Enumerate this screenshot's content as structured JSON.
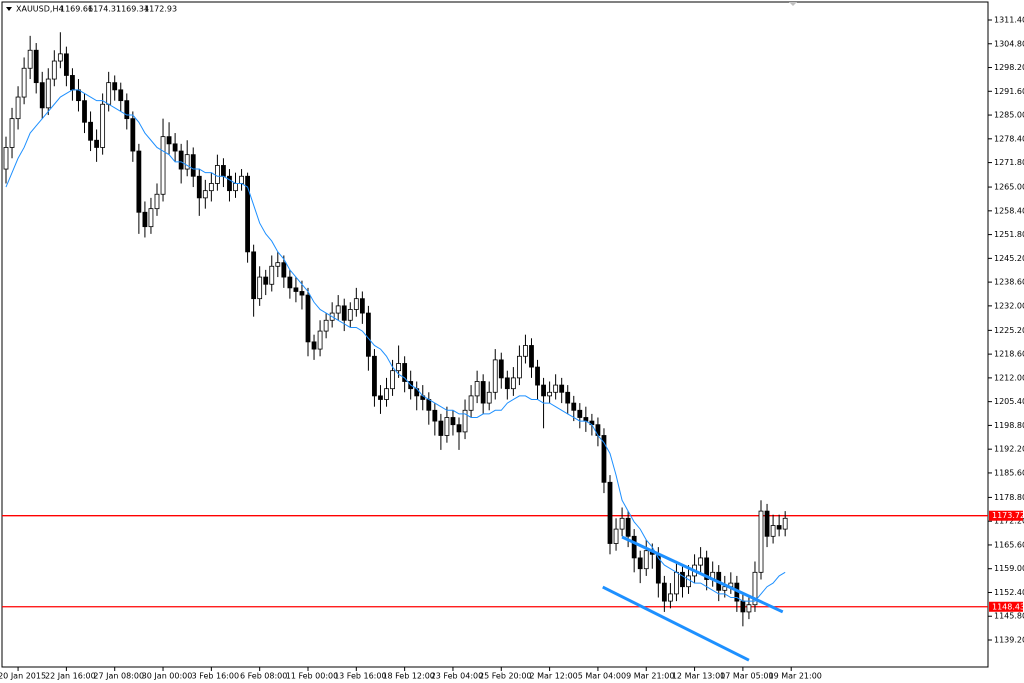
{
  "chart_data": {
    "type": "candlestick",
    "title": "XAUUSD,H4",
    "quote": [
      1169.66,
      1174.31,
      1169.34,
      1172.93
    ],
    "ylim": [
      1131.7,
      1316.4
    ],
    "xlim": [
      -0.66,
      162.58
    ],
    "yticks": [
      {
        "value": 1311.4,
        "label": "1311.40"
      },
      {
        "value": 1304.8,
        "label": "1304.80"
      },
      {
        "value": 1298.2,
        "label": "1298.20"
      },
      {
        "value": 1291.6,
        "label": "1291.60"
      },
      {
        "value": 1285,
        "label": "1285.00"
      },
      {
        "value": 1278.4,
        "label": "1278.40"
      },
      {
        "value": 1271.8,
        "label": "1271.80"
      },
      {
        "value": 1265,
        "label": "1265.00"
      },
      {
        "value": 1258.4,
        "label": "1258.40"
      },
      {
        "value": 1251.8,
        "label": "1251.80"
      },
      {
        "value": 1245.2,
        "label": "1245.20"
      },
      {
        "value": 1238.6,
        "label": "1238.60"
      },
      {
        "value": 1232,
        "label": "1232.00"
      },
      {
        "value": 1225.2,
        "label": "1225.20"
      },
      {
        "value": 1218.6,
        "label": "1218.60"
      },
      {
        "value": 1212,
        "label": "1212.00"
      },
      {
        "value": 1205.4,
        "label": "1205.40"
      },
      {
        "value": 1198.8,
        "label": "1198.80"
      },
      {
        "value": 1192.2,
        "label": "1192.20"
      },
      {
        "value": 1185.6,
        "label": "1185.60"
      },
      {
        "value": 1178.8,
        "label": "1178.80"
      },
      {
        "value": 1172.2,
        "label": "1172.20"
      },
      {
        "value": 1165.6,
        "label": "1165.60"
      },
      {
        "value": 1159,
        "label": "1159.00"
      },
      {
        "value": 1152.4,
        "label": "1152.40"
      },
      {
        "value": 1145.8,
        "label": "1145.80"
      },
      {
        "value": 1139.2,
        "label": "1139.20"
      }
    ],
    "xticks": [
      {
        "value": 2,
        "label": "20 Jan 2015"
      },
      {
        "value": 10,
        "label": "22 Jan 16:00"
      },
      {
        "value": 18,
        "label": "27 Jan 08:00"
      },
      {
        "value": 26,
        "label": "30 Jan 00:00"
      },
      {
        "value": 34,
        "label": "3 Feb 16:00"
      },
      {
        "value": 42,
        "label": "6 Feb 08:00"
      },
      {
        "value": 50,
        "label": "11 Feb 00:00"
      },
      {
        "value": 58,
        "label": "13 Feb 16:00"
      },
      {
        "value": 66,
        "label": "18 Feb 12:00"
      },
      {
        "value": 74,
        "label": "23 Feb 04:00"
      },
      {
        "value": 82,
        "label": "25 Feb 20:00"
      },
      {
        "value": 90,
        "label": "2 Mar 12:00"
      },
      {
        "value": 98,
        "label": "5 Mar 04:00"
      },
      {
        "value": 106,
        "label": "9 Mar 21:00"
      },
      {
        "value": 114,
        "label": "12 Mar 13:00"
      },
      {
        "value": 122,
        "label": "17 Mar 05:00"
      },
      {
        "value": 130,
        "label": "19 Mar 21:00"
      }
    ],
    "candles": [
      [
        1270,
        1279,
        1266,
        1276
      ],
      [
        1276,
        1287,
        1273,
        1284
      ],
      [
        1284,
        1293,
        1281,
        1290
      ],
      [
        1290,
        1301,
        1288,
        1298
      ],
      [
        1298,
        1307,
        1295,
        1303
      ],
      [
        1303,
        1305,
        1291,
        1294
      ],
      [
        1294,
        1297,
        1284,
        1287
      ],
      [
        1287,
        1298,
        1285,
        1295
      ],
      [
        1295,
        1303,
        1293,
        1300
      ],
      [
        1300,
        1308,
        1298,
        1302
      ],
      [
        1302,
        1304,
        1293,
        1296
      ],
      [
        1296,
        1298,
        1289,
        1292
      ],
      [
        1292,
        1295,
        1286,
        1289
      ],
      [
        1289,
        1291,
        1280,
        1283
      ],
      [
        1283,
        1286,
        1275,
        1278
      ],
      [
        1278,
        1281,
        1272,
        1276
      ],
      [
        1276,
        1291,
        1274,
        1288
      ],
      [
        1288,
        1297,
        1286,
        1294
      ],
      [
        1294,
        1296,
        1289,
        1292
      ],
      [
        1292,
        1294,
        1286,
        1289
      ],
      [
        1289,
        1291,
        1281,
        1284
      ],
      [
        1284,
        1286,
        1272,
        1275
      ],
      [
        1275,
        1277,
        1252,
        1258
      ],
      [
        1258,
        1261,
        1251,
        1254
      ],
      [
        1254,
        1262,
        1252,
        1259
      ],
      [
        1259,
        1266,
        1257,
        1263
      ],
      [
        1263,
        1284,
        1261,
        1279
      ],
      [
        1279,
        1283,
        1274,
        1277
      ],
      [
        1277,
        1280,
        1272,
        1275
      ],
      [
        1275,
        1277,
        1266,
        1270
      ],
      [
        1270,
        1278,
        1268,
        1274
      ],
      [
        1274,
        1276,
        1265,
        1268
      ],
      [
        1268,
        1270,
        1257,
        1262
      ],
      [
        1262,
        1267,
        1259,
        1264
      ],
      [
        1264,
        1269,
        1261,
        1266
      ],
      [
        1266,
        1274,
        1264,
        1271
      ],
      [
        1271,
        1273,
        1265,
        1268
      ],
      [
        1268,
        1270,
        1261,
        1264
      ],
      [
        1264,
        1269,
        1262,
        1266
      ],
      [
        1266,
        1270,
        1264,
        1268
      ],
      [
        1268,
        1269,
        1244,
        1247
      ],
      [
        1247,
        1249,
        1229,
        1234
      ],
      [
        1234,
        1243,
        1232,
        1240
      ],
      [
        1240,
        1242,
        1235,
        1238
      ],
      [
        1238,
        1246,
        1236,
        1243
      ],
      [
        1243,
        1247,
        1240,
        1244
      ],
      [
        1244,
        1246,
        1237,
        1240
      ],
      [
        1240,
        1242,
        1234,
        1237
      ],
      [
        1237,
        1240,
        1233,
        1236
      ],
      [
        1236,
        1239,
        1231,
        1235
      ],
      [
        1235,
        1237,
        1218,
        1222
      ],
      [
        1222,
        1224,
        1217,
        1220
      ],
      [
        1220,
        1228,
        1218,
        1225
      ],
      [
        1225,
        1230,
        1223,
        1228
      ],
      [
        1228,
        1233,
        1226,
        1230
      ],
      [
        1230,
        1235,
        1228,
        1232
      ],
      [
        1232,
        1234,
        1225,
        1228
      ],
      [
        1228,
        1233,
        1226,
        1231
      ],
      [
        1231,
        1237,
        1229,
        1234
      ],
      [
        1234,
        1236,
        1227,
        1230
      ],
      [
        1230,
        1232,
        1214,
        1218
      ],
      [
        1218,
        1220,
        1204,
        1207
      ],
      [
        1207,
        1210,
        1202,
        1206
      ],
      [
        1206,
        1212,
        1204,
        1209
      ],
      [
        1209,
        1217,
        1207,
        1214
      ],
      [
        1214,
        1221,
        1212,
        1216
      ],
      [
        1216,
        1218,
        1208,
        1211
      ],
      [
        1211,
        1214,
        1206,
        1209
      ],
      [
        1209,
        1211,
        1203,
        1207
      ],
      [
        1207,
        1210,
        1203,
        1206
      ],
      [
        1206,
        1208,
        1199,
        1203
      ],
      [
        1203,
        1205,
        1196,
        1200
      ],
      [
        1200,
        1202,
        1192,
        1196
      ],
      [
        1196,
        1204,
        1194,
        1201
      ],
      [
        1201,
        1203,
        1196,
        1199
      ],
      [
        1199,
        1201,
        1192,
        1197
      ],
      [
        1197,
        1206,
        1195,
        1203
      ],
      [
        1203,
        1210,
        1201,
        1207
      ],
      [
        1207,
        1214,
        1205,
        1211
      ],
      [
        1211,
        1213,
        1202,
        1205
      ],
      [
        1205,
        1211,
        1203,
        1208
      ],
      [
        1208,
        1220,
        1206,
        1217
      ],
      [
        1217,
        1219,
        1209,
        1212
      ],
      [
        1212,
        1214,
        1206,
        1209
      ],
      [
        1209,
        1215,
        1207,
        1212
      ],
      [
        1212,
        1221,
        1210,
        1218
      ],
      [
        1218,
        1224,
        1216,
        1221
      ],
      [
        1221,
        1223,
        1212,
        1215
      ],
      [
        1215,
        1217,
        1206,
        1210
      ],
      [
        1210,
        1212,
        1198,
        1207
      ],
      [
        1207,
        1211,
        1205,
        1208
      ],
      [
        1208,
        1213,
        1206,
        1210
      ],
      [
        1210,
        1212,
        1205,
        1208
      ],
      [
        1208,
        1210,
        1202,
        1205
      ],
      [
        1205,
        1207,
        1200,
        1203
      ],
      [
        1203,
        1205,
        1198,
        1201
      ],
      [
        1201,
        1204,
        1197,
        1200
      ],
      [
        1200,
        1202,
        1196,
        1199
      ],
      [
        1199,
        1201,
        1193,
        1196
      ],
      [
        1196,
        1198,
        1180,
        1183
      ],
      [
        1183,
        1185,
        1163,
        1166
      ],
      [
        1166,
        1173,
        1164,
        1170
      ],
      [
        1170,
        1176,
        1168,
        1173
      ],
      [
        1173,
        1175,
        1165,
        1168
      ],
      [
        1168,
        1170,
        1158,
        1162
      ],
      [
        1162,
        1164,
        1155,
        1159
      ],
      [
        1159,
        1167,
        1157,
        1164
      ],
      [
        1164,
        1166,
        1159,
        1163
      ],
      [
        1163,
        1165,
        1151,
        1155
      ],
      [
        1155,
        1157,
        1147,
        1150
      ],
      [
        1150,
        1155,
        1148,
        1152
      ],
      [
        1152,
        1161,
        1150,
        1158
      ],
      [
        1158,
        1160,
        1151,
        1154
      ],
      [
        1154,
        1160,
        1152,
        1157
      ],
      [
        1157,
        1163,
        1155,
        1160
      ],
      [
        1160,
        1165,
        1158,
        1162
      ],
      [
        1162,
        1164,
        1153,
        1156
      ],
      [
        1156,
        1161,
        1154,
        1158
      ],
      [
        1158,
        1160,
        1150,
        1153
      ],
      [
        1153,
        1157,
        1151,
        1154
      ],
      [
        1154,
        1158,
        1152,
        1155
      ],
      [
        1155,
        1157,
        1147,
        1150
      ],
      [
        1150,
        1152,
        1143,
        1147
      ],
      [
        1147,
        1151,
        1145,
        1149
      ],
      [
        1149,
        1161,
        1147,
        1158
      ],
      [
        1158,
        1178,
        1156,
        1175
      ],
      [
        1175,
        1177,
        1165,
        1168
      ],
      [
        1168,
        1174,
        1166,
        1171
      ],
      [
        1171,
        1174,
        1168,
        1170
      ],
      [
        1170,
        1175,
        1168,
        1173
      ]
    ],
    "ma": {
      "color": "#1e90ff",
      "values": [
        1265,
        1269,
        1273,
        1276,
        1280,
        1282,
        1284,
        1286,
        1288,
        1290,
        1291,
        1292,
        1292,
        1291,
        1290,
        1289,
        1289,
        1288,
        1287,
        1286,
        1285,
        1285,
        1283,
        1280,
        1278,
        1276,
        1275,
        1274,
        1272,
        1272,
        1271,
        1270,
        1270,
        1269,
        1269,
        1268,
        1268,
        1267,
        1266,
        1266,
        1265,
        1260,
        1255,
        1252,
        1250,
        1247,
        1245,
        1242,
        1240,
        1238,
        1236,
        1233,
        1231,
        1230,
        1229,
        1228,
        1227,
        1226,
        1226,
        1225,
        1223,
        1221,
        1220,
        1218,
        1215,
        1213,
        1212,
        1210,
        1209,
        1207,
        1206,
        1205,
        1204,
        1203,
        1203,
        1202,
        1202,
        1201,
        1201,
        1202,
        1202,
        1203,
        1203,
        1205,
        1206,
        1207,
        1207,
        1206,
        1206,
        1205,
        1205,
        1204,
        1203,
        1202,
        1201,
        1200,
        1200,
        1199,
        1196,
        1194,
        1191,
        1185,
        1178,
        1175,
        1172,
        1170,
        1167,
        1165,
        1162,
        1160,
        1159,
        1158,
        1157,
        1156,
        1155,
        1155,
        1154,
        1153,
        1152,
        1152,
        1151,
        1151,
        1150,
        1150,
        1150,
        1152,
        1154,
        1155,
        1157,
        1158
      ]
    },
    "hlines": [
      {
        "value": 1173.72,
        "color": "#ff0000"
      },
      {
        "value": 1148.43,
        "color": "#ff0000"
      }
    ],
    "trendlines": [
      {
        "x": [
          102,
          128.6
        ],
        "y": [
          1167.8,
          1147.0
        ],
        "color": "#1e90ff"
      },
      {
        "x": [
          98.8,
          123
        ],
        "y": [
          1153.9,
          1133.6
        ],
        "color": "#1e90ff"
      }
    ]
  }
}
